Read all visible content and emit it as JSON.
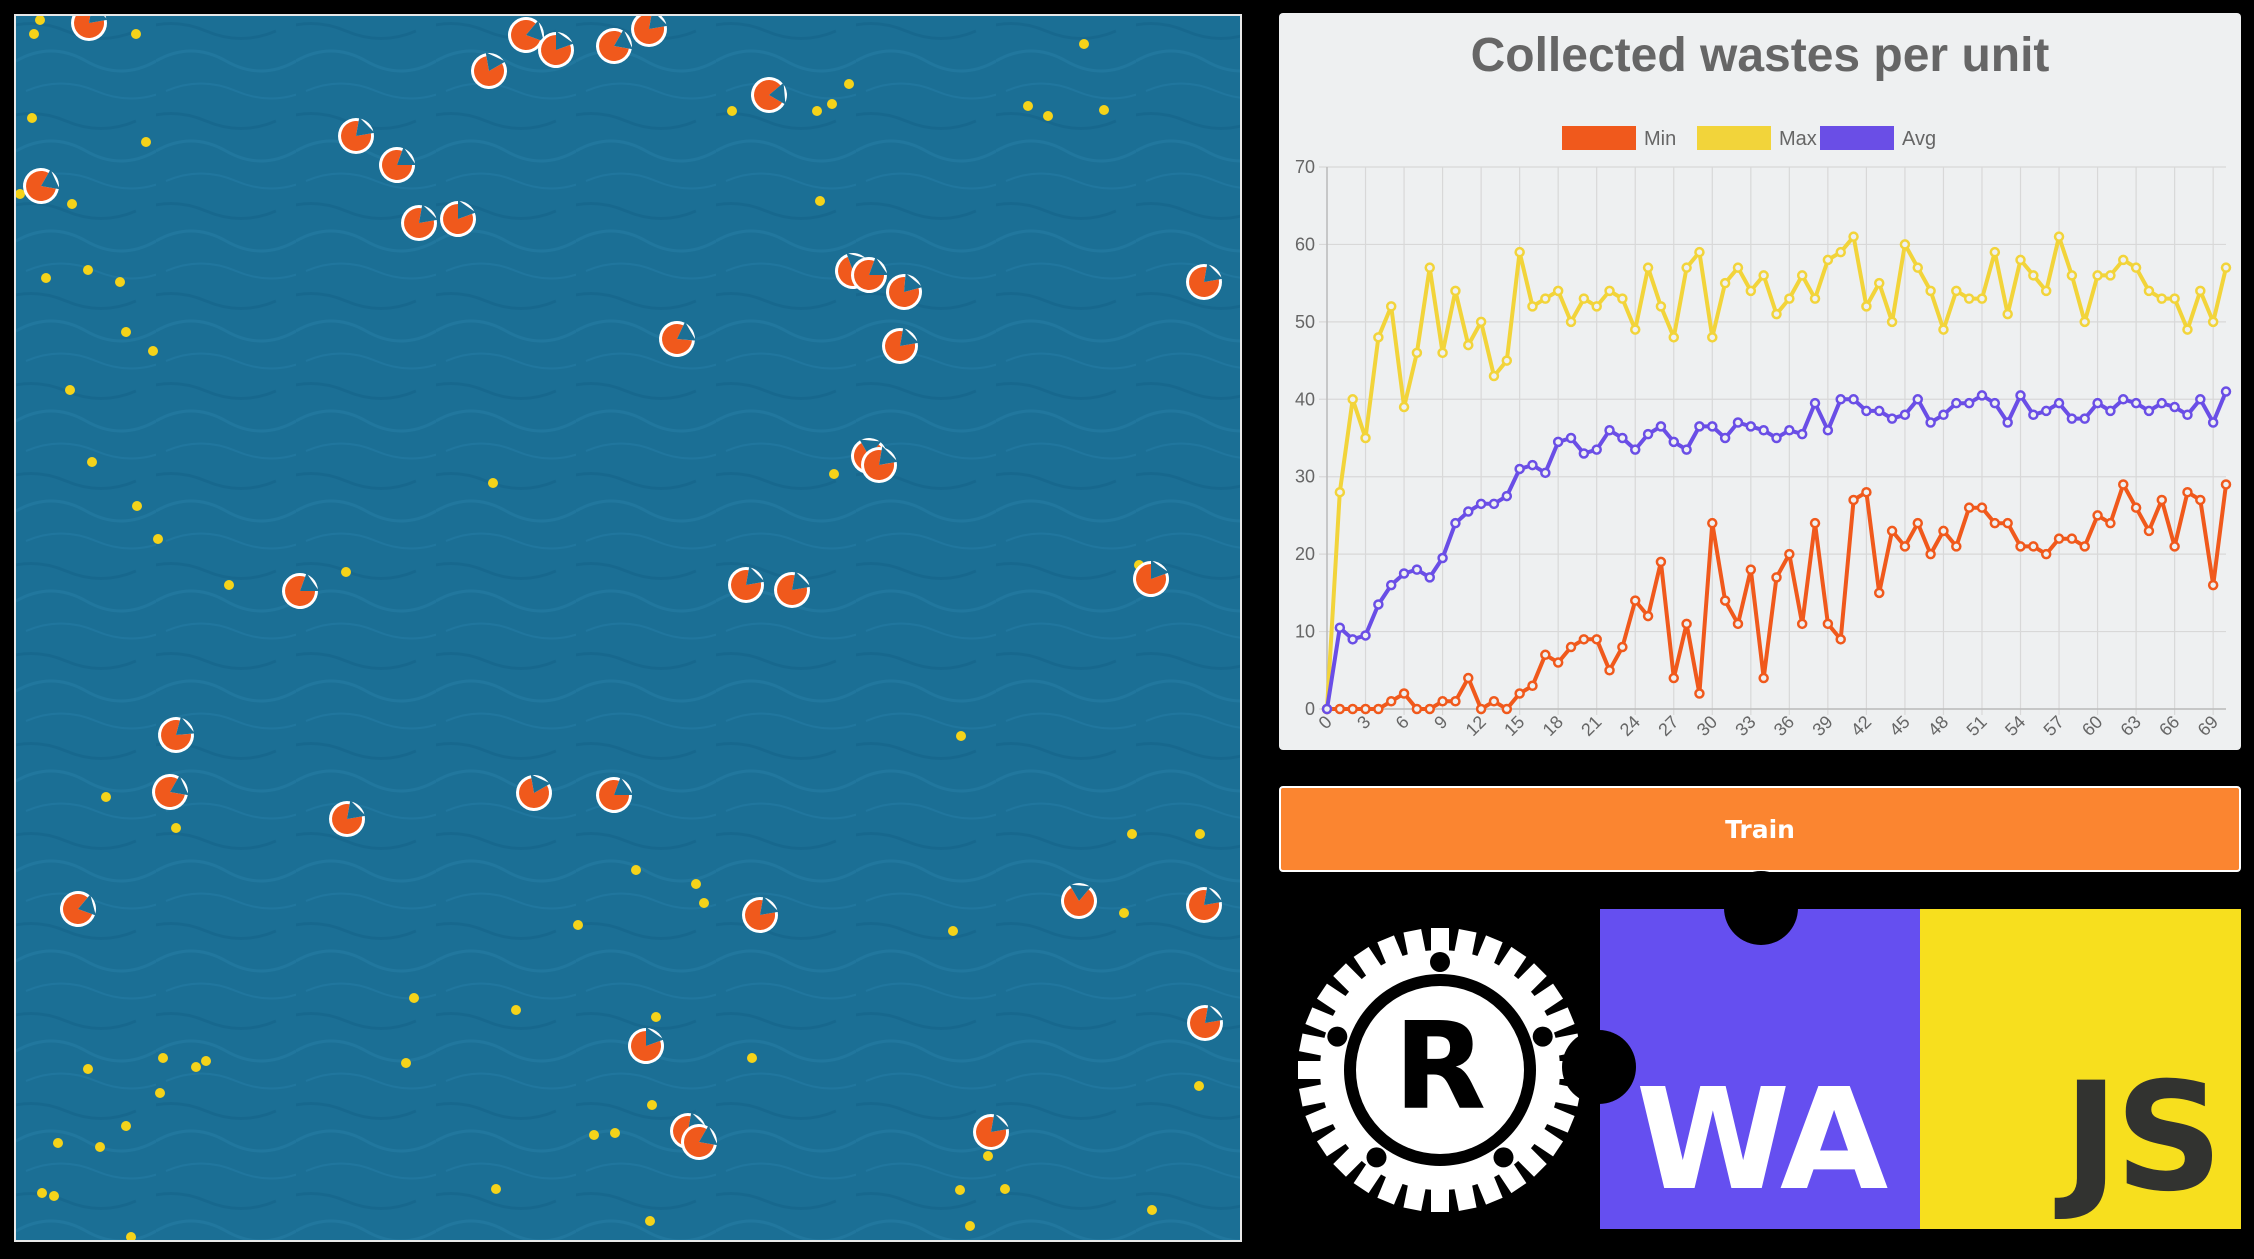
{
  "train_button": {
    "label": "Train"
  },
  "logos": {
    "rust": "R",
    "wasm": "WA",
    "js": "JS"
  },
  "colors": {
    "ocean": "#1b6f95",
    "robot": "#f0591c",
    "waste": "#f5d31a",
    "chart_bg": "#eef0f1",
    "min": "#f0591c",
    "max": "#f2d43a",
    "avg": "#6a4ee6",
    "train": "#fb8530",
    "wasm": "#654ff0",
    "js": "#f7df1e"
  },
  "chart_data": {
    "type": "line",
    "title": "Collected wastes per unit",
    "legend_position": "top-center",
    "grid": true,
    "x": [
      0,
      1,
      2,
      3,
      4,
      5,
      6,
      7,
      8,
      9,
      10,
      11,
      12,
      13,
      14,
      15,
      16,
      17,
      18,
      19,
      20,
      21,
      22,
      23,
      24,
      25,
      26,
      27,
      28,
      29,
      30,
      31,
      32,
      33,
      34,
      35,
      36,
      37,
      38,
      39,
      40,
      41,
      42,
      43,
      44,
      45,
      46,
      47,
      48,
      49,
      50,
      51,
      52,
      53,
      54,
      55,
      56,
      57,
      58,
      59,
      60,
      61,
      62,
      63,
      64,
      65,
      66,
      67,
      68,
      69,
      70
    ],
    "x_tick_labels": [
      "0",
      "3",
      "6",
      "9",
      "12",
      "15",
      "18",
      "21",
      "24",
      "27",
      "30",
      "33",
      "36",
      "39",
      "42",
      "45",
      "48",
      "51",
      "54",
      "57",
      "60",
      "63",
      "66",
      "69"
    ],
    "x_tick_step": 3,
    "ylim": [
      0,
      70
    ],
    "y_ticks": [
      0,
      10,
      20,
      30,
      40,
      50,
      60,
      70
    ],
    "series": [
      {
        "name": "Min",
        "color": "#f0591c",
        "values": [
          0,
          0,
          0,
          0,
          0,
          1,
          2,
          0,
          0,
          1,
          1,
          4,
          0,
          1,
          0,
          2,
          3,
          7,
          6,
          8,
          9,
          9,
          5,
          8,
          14,
          12,
          19,
          4,
          11,
          2,
          24,
          14,
          11,
          18,
          4,
          17,
          20,
          11,
          24,
          11,
          9,
          27,
          28,
          15,
          23,
          21,
          24,
          20,
          23,
          21,
          26,
          26,
          24,
          24,
          21,
          21,
          20,
          22,
          22,
          21,
          25,
          24,
          29,
          26,
          23,
          27,
          21,
          28,
          27,
          16,
          29
        ]
      },
      {
        "name": "Max",
        "color": "#f2d43a",
        "values": [
          0,
          28,
          40,
          35,
          48,
          52,
          39,
          46,
          57,
          46,
          54,
          47,
          50,
          43,
          45,
          59,
          52,
          53,
          54,
          50,
          53,
          52,
          54,
          53,
          49,
          57,
          52,
          48,
          57,
          59,
          48,
          55,
          57,
          54,
          56,
          51,
          53,
          56,
          53,
          58,
          59,
          61,
          52,
          55,
          50,
          60,
          57,
          54,
          49,
          54,
          53,
          53,
          59,
          51,
          58,
          56,
          54,
          61,
          56,
          50,
          56,
          56,
          58,
          57,
          54,
          53,
          53,
          49,
          54,
          50,
          57
        ]
      },
      {
        "name": "Avg",
        "color": "#6a4ee6",
        "values": [
          0,
          10.5,
          9,
          9.5,
          13.5,
          16,
          17.5,
          18,
          17,
          19.5,
          24,
          25.5,
          26.5,
          26.5,
          27.5,
          31,
          31.5,
          30.5,
          34.5,
          35,
          33,
          33.5,
          36,
          35,
          33.5,
          35.5,
          36.5,
          34.5,
          33.5,
          36.5,
          36.5,
          35,
          37,
          36.5,
          36,
          35,
          36,
          35.5,
          39.5,
          36,
          40,
          40,
          38.5,
          38.5,
          37.5,
          38,
          40,
          37,
          38,
          39.5,
          39.5,
          40.5,
          39.5,
          37,
          40.5,
          38,
          38.5,
          39.5,
          37.5,
          37.5,
          39.5,
          38.5,
          40,
          39.5,
          38.5,
          39.5,
          39,
          38,
          40,
          37,
          41
        ]
      }
    ]
  }
}
